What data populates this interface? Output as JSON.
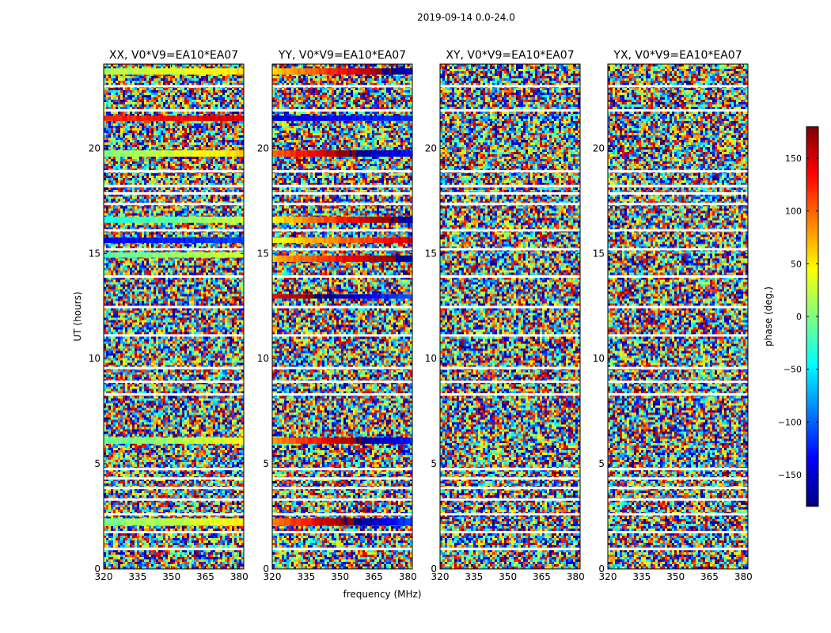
{
  "figure_title": "2019-09-14 0.0-24.0",
  "chart_data": {
    "type": "heatmap",
    "title": "2019-09-14 0.0-24.0",
    "xlabel": "frequency (MHz)",
    "ylabel": "UT (hours)",
    "xlim": [
      320,
      382
    ],
    "ylim": [
      0,
      24
    ],
    "xticks": [
      320,
      335,
      350,
      365,
      380
    ],
    "yticks": [
      0,
      5,
      10,
      15,
      20
    ],
    "panels": [
      {
        "title": "XX, V0*V9=EA10*EA07",
        "correlation": "XX",
        "coherent_bands": [
          {
            "t0": 2.05,
            "t1": 2.4,
            "phase_start": -5,
            "phase_end": 50
          },
          {
            "t0": 5.95,
            "t1": 6.25,
            "phase_start": -10,
            "phase_end": 40
          },
          {
            "t0": 14.8,
            "t1": 15.05,
            "phase_start": -15,
            "phase_end": 30
          },
          {
            "t0": 15.5,
            "t1": 15.75,
            "phase_start": -140,
            "phase_end": -110
          },
          {
            "t0": 16.45,
            "t1": 16.75,
            "phase_start": -40,
            "phase_end": 30
          },
          {
            "t0": 19.6,
            "t1": 19.9,
            "phase_start": 0,
            "phase_end": 60
          },
          {
            "t0": 21.3,
            "t1": 21.55,
            "phase_start": 120,
            "phase_end": 150
          },
          {
            "t0": 23.5,
            "t1": 23.8,
            "phase_start": 10,
            "phase_end": 60
          }
        ]
      },
      {
        "title": "YY, V0*V9=EA10*EA07",
        "correlation": "YY",
        "coherent_bands": [
          {
            "t0": 2.05,
            "t1": 2.4,
            "phase_start": 90,
            "phase_end": 250
          },
          {
            "t0": 5.95,
            "t1": 6.25,
            "phase_start": 80,
            "phase_end": 240
          },
          {
            "t0": 12.85,
            "t1": 13.05,
            "phase_start": 140,
            "phase_end": 260
          },
          {
            "t0": 14.6,
            "t1": 14.9,
            "phase_start": 70,
            "phase_end": 200
          },
          {
            "t0": 15.5,
            "t1": 15.75,
            "phase_start": 40,
            "phase_end": 150
          },
          {
            "t0": 16.45,
            "t1": 16.75,
            "phase_start": 50,
            "phase_end": 200
          },
          {
            "t0": 19.6,
            "t1": 19.9,
            "phase_start": 100,
            "phase_end": 240
          },
          {
            "t0": 21.3,
            "t1": 21.55,
            "phase_start": -150,
            "phase_end": -120
          },
          {
            "t0": 23.5,
            "t1": 23.8,
            "phase_start": 60,
            "phase_end": 210
          }
        ]
      },
      {
        "title": "XY, V0*V9=EA10*EA07",
        "correlation": "XY",
        "coherent_bands": []
      },
      {
        "title": "YX, V0*V9=EA10*EA07",
        "correlation": "YX",
        "coherent_bands": []
      }
    ],
    "flagged_times": [
      0.95,
      1.75,
      2.6,
      3.3,
      3.85,
      4.3,
      4.75,
      8.3,
      8.9,
      9.55,
      11.1,
      12.45,
      13.9,
      15.2,
      16.1,
      17.35,
      17.85,
      18.2,
      18.9,
      21.8,
      22.95
    ],
    "colorbar": {
      "label": "phase (deg.)",
      "ticks": [
        150,
        100,
        50,
        0,
        -50,
        -100,
        -150
      ],
      "tick_labels": [
        "150",
        "100",
        "50",
        "0",
        "−50",
        "−100",
        "−150"
      ],
      "range": [
        -180,
        180
      ],
      "colormap": "jet",
      "colors": [
        "#00007f",
        "#0000ff",
        "#007fff",
        "#00ffff",
        "#7fff7f",
        "#ffff00",
        "#ff7f00",
        "#ff0000",
        "#7f0000"
      ]
    }
  }
}
